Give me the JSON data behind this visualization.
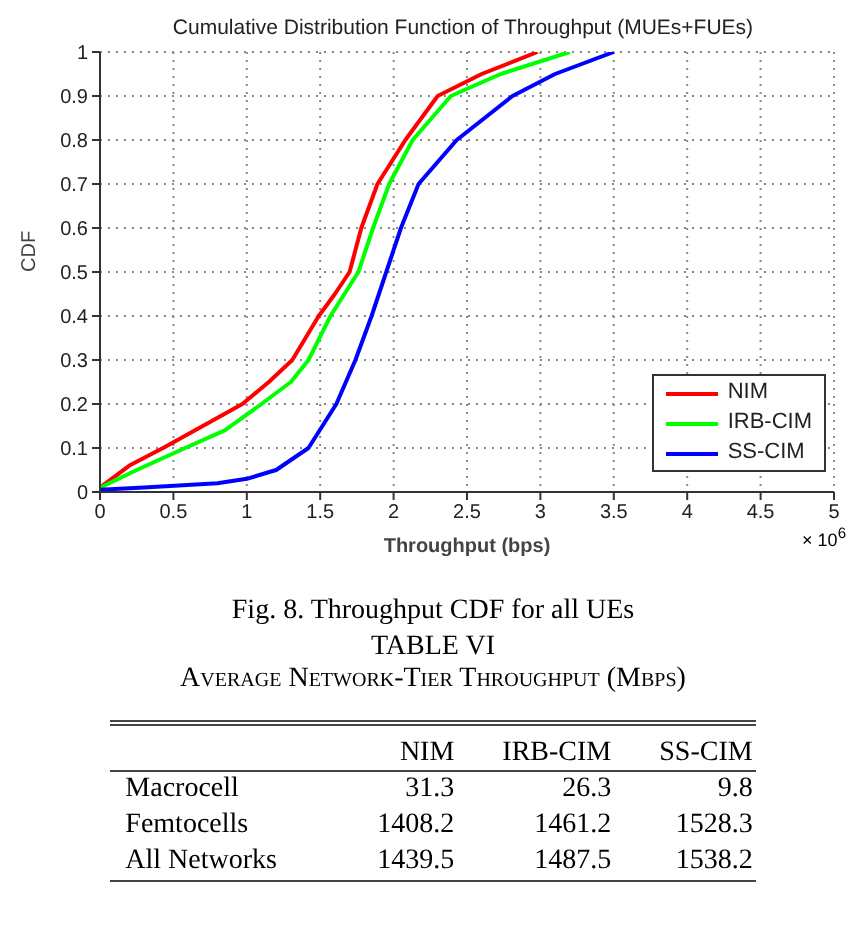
{
  "chart_data": [
    {
      "type": "line",
      "title": "Cumulative Distribution Function of Throughput (MUEs+FUEs)",
      "xlabel": "Throughput (bps)",
      "ylabel": "CDF",
      "annotations": [
        "× 10$^{6}$",
        "Fig. 8.  Throughput CDF for all UEs"
      ],
      "xlim": [
        0,
        5
      ],
      "xticks": [
        0,
        0.5,
        1,
        1.5,
        2,
        2.5,
        3,
        3.5,
        4,
        4.5,
        5
      ],
      "ylim": [
        0,
        1
      ],
      "yticks": [
        0,
        0.1,
        0.2,
        0.3,
        0.4,
        0.5,
        0.6,
        0.7,
        0.8,
        0.9,
        1
      ],
      "grid": true,
      "legend": "bottom right",
      "marker": "none",
      "line_style": "solid",
      "series": [
        {
          "name": "NIM",
          "color": "#ff0000",
          "x": [
            0,
            0.2,
            0.43,
            0.7,
            0.97,
            1.15,
            1.31,
            1.49,
            1.6,
            1.7,
            1.78,
            1.89,
            2.08,
            2.3,
            2.6,
            2.98
          ],
          "values": [
            0.01,
            0.06,
            0.1,
            0.15,
            0.2,
            0.25,
            0.3,
            0.4,
            0.45,
            0.5,
            0.6,
            0.7,
            0.8,
            0.9,
            0.95,
            1
          ]
        },
        {
          "name": "IRB-CIM",
          "color": "#00ff00",
          "x": [
            0,
            0.25,
            0.58,
            0.85,
            1.1,
            1.3,
            1.42,
            1.57,
            1.76,
            1.86,
            1.97,
            2.13,
            2.39,
            2.73,
            3.2
          ],
          "values": [
            0.01,
            0.05,
            0.1,
            0.14,
            0.2,
            0.25,
            0.3,
            0.4,
            0.5,
            0.6,
            0.7,
            0.8,
            0.9,
            0.95,
            1
          ]
        },
        {
          "name": "SS-CIM",
          "color": "#0000ff",
          "x": [
            0,
            0.3,
            0.8,
            1,
            1.2,
            1.42,
            1.61,
            1.74,
            1.85,
            1.95,
            2.05,
            2.17,
            2.43,
            2.81,
            3.1,
            3.5
          ],
          "values": [
            0.005,
            0.01,
            0.02,
            0.03,
            0.05,
            0.1,
            0.2,
            0.3,
            0.4,
            0.5,
            0.6,
            0.7,
            0.8,
            0.9,
            0.95,
            1
          ]
        }
      ]
    },
    {
      "type": "other",
      "title": "TABLE VI",
      "subtitle": "Average Network-Tier Throughput (Mbps)",
      "categories": [
        "Macrocell",
        "Femtocells",
        "All Networks"
      ],
      "data_labels": true,
      "series": [
        {
          "name": "NIM",
          "values": [
            31.3,
            1408.2,
            1439.5
          ]
        },
        {
          "name": "IRB-CIM",
          "values": [
            26.3,
            1461.2,
            1487.5
          ]
        },
        {
          "name": "SS-CIM",
          "values": [
            9.8,
            1528.3,
            1538.2
          ]
        }
      ]
    }
  ]
}
